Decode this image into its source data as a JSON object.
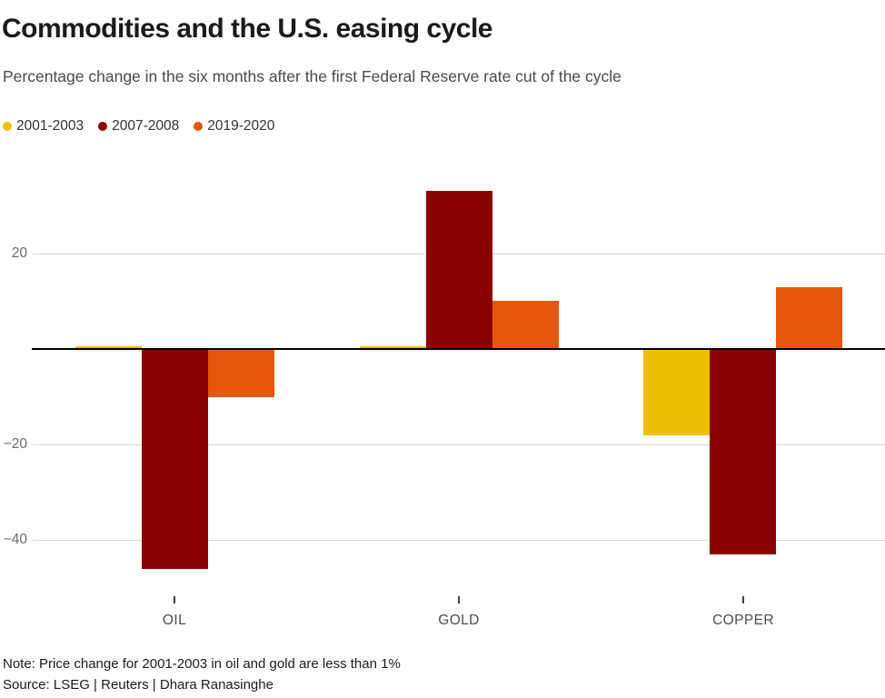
{
  "title": "Commodities and the U.S. easing cycle",
  "subtitle": "Percentage change in the six months after the first Federal Reserve rate cut of the cycle",
  "note": "Note: Price change for 2001-2003 in oil and gold are less than 1%",
  "source": "Source: LSEG | Reuters | Dhara Ranasinghe",
  "colors": {
    "title": "#1a1a1a",
    "subtitle": "#4a4a4a",
    "axis_label": "#6b6b6b",
    "category_label": "#4d4d4d",
    "gridline": "#d9d9d9",
    "zero_line": "#000000",
    "background": "#ffffff",
    "series_2001_2003": "#efbf04",
    "series_2007_2008": "#8b0404",
    "series_2019_2020": "#e4570e"
  },
  "chart_data": {
    "type": "bar",
    "title": "Commodities and the U.S. easing cycle",
    "subtitle": "Percentage change in the six months after the first Federal Reserve rate cut of the cycle",
    "categories": [
      "OIL",
      "GOLD",
      "COPPER"
    ],
    "series": [
      {
        "name": "2001-2003",
        "color": "#efbf04",
        "values": [
          0.6,
          0.6,
          -18
        ]
      },
      {
        "name": "2007-2008",
        "color": "#8b0404",
        "values": [
          -46,
          33,
          -43
        ]
      },
      {
        "name": "2019-2020",
        "color": "#e4570e",
        "values": [
          -10,
          10,
          13
        ]
      }
    ],
    "unit": "percent",
    "xlabel": "",
    "ylabel": "",
    "yticks": [
      {
        "label": "20",
        "value": 20
      },
      {
        "label": "−20",
        "value": -20
      },
      {
        "label": "−40",
        "value": -40
      }
    ],
    "ylim": [
      -50,
      36
    ],
    "grid": true,
    "zero_line": true,
    "legend_position": "top-left"
  }
}
